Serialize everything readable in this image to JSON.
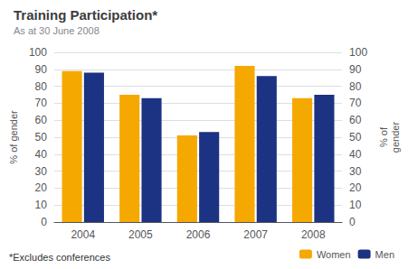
{
  "chart_data": {
    "type": "bar",
    "title": "Training Participation*",
    "subtitle": "As at 30 June 2008",
    "footnote": "*Excludes conferences",
    "ylabel": "% of gender",
    "y2label": "% of\ngender",
    "categories": [
      "2004",
      "2005",
      "2006",
      "2007",
      "2008"
    ],
    "series": [
      {
        "name": "Women",
        "color": "#F5A800",
        "values": [
          89,
          75,
          51,
          92,
          73
        ]
      },
      {
        "name": "Men",
        "color": "#1C3282",
        "values": [
          88,
          73,
          53,
          86,
          75
        ]
      }
    ],
    "ylim": [
      0,
      100
    ],
    "yticks": [
      0,
      10,
      20,
      30,
      40,
      50,
      60,
      70,
      80,
      90,
      100
    ],
    "y2lim": [
      0,
      100
    ],
    "y2ticks": [
      0,
      10,
      20,
      30,
      40,
      50,
      60,
      70,
      80,
      90,
      100
    ],
    "grid": true,
    "legend": "lower right"
  }
}
